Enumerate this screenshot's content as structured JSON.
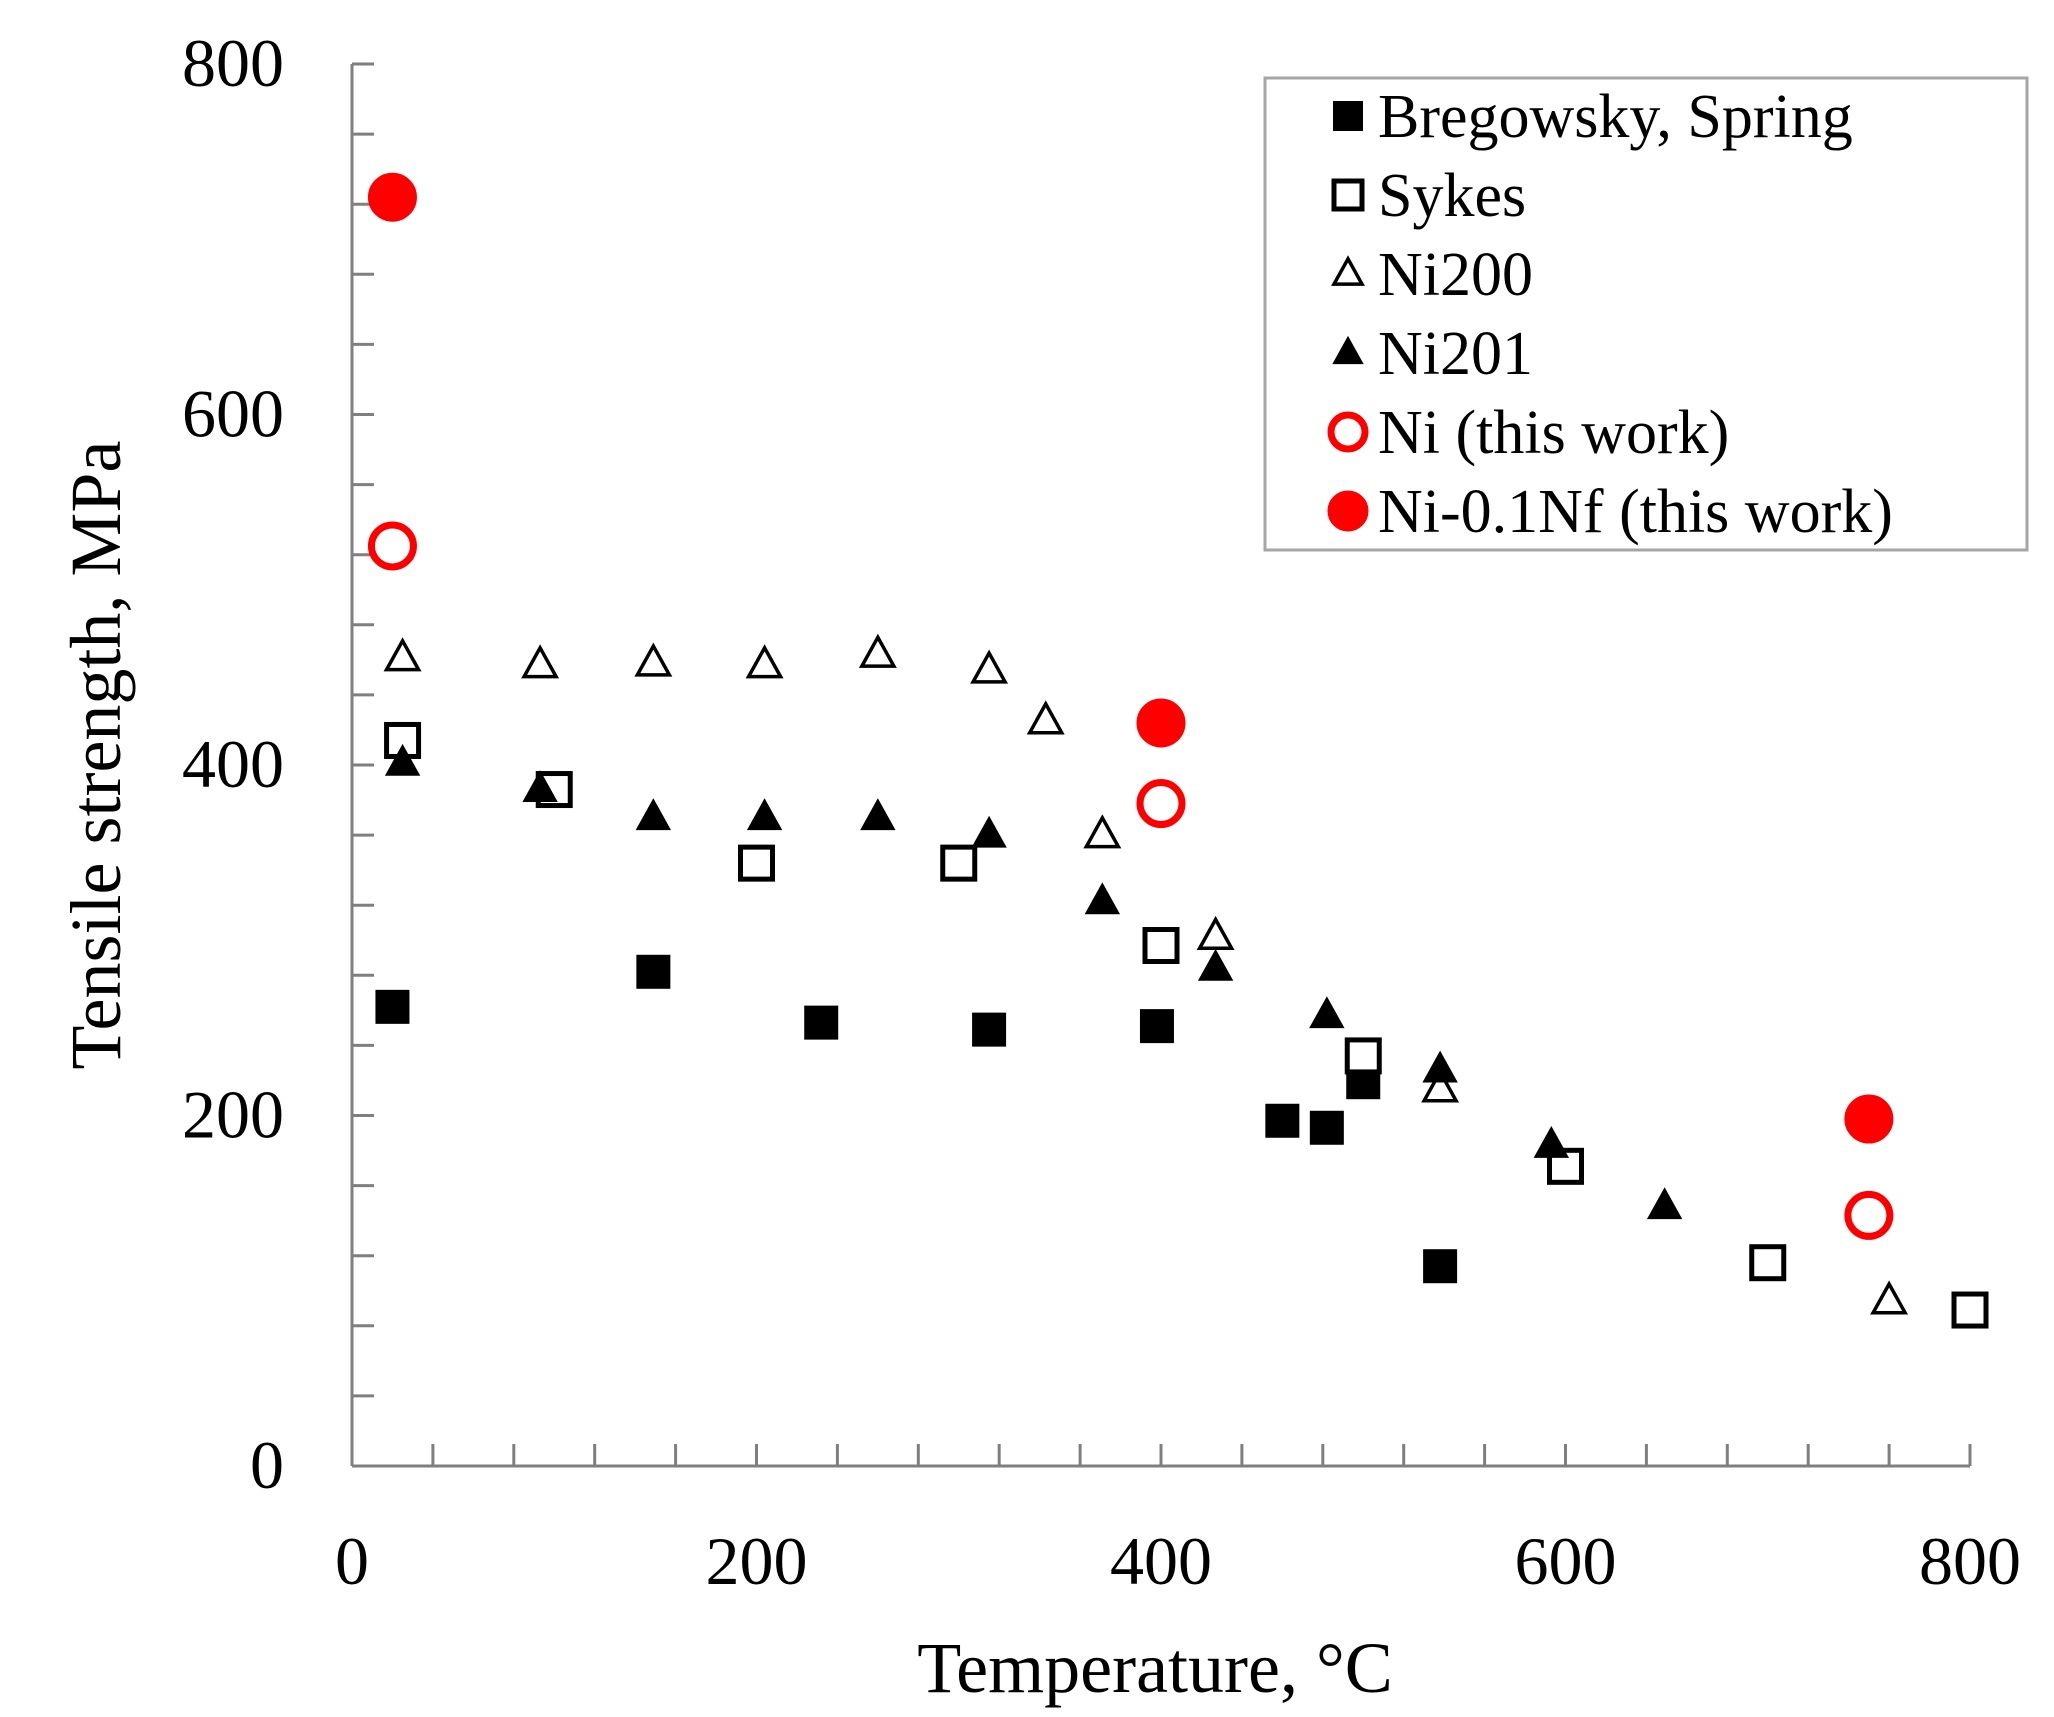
{
  "chart_data": {
    "type": "scatter",
    "title": "",
    "xlabel": "Temperature,  °C",
    "ylabel": "Tensile strength,  MPa",
    "xlim": [
      0,
      800
    ],
    "ylim": [
      0,
      800
    ],
    "x_ticks": [
      "0",
      "200",
      "400",
      "600",
      "800"
    ],
    "y_ticks": [
      "0",
      "200",
      "400",
      "600",
      "800"
    ],
    "grid": false,
    "legend_position": "top-right",
    "series": [
      {
        "name": "Bregowsky, Spring",
        "marker": "square",
        "filled": true,
        "color": "#000000",
        "points": [
          [
            20,
            262
          ],
          [
            149,
            282
          ],
          [
            232,
            253
          ],
          [
            315,
            249
          ],
          [
            398,
            251
          ],
          [
            460,
            197
          ],
          [
            482,
            193
          ],
          [
            500,
            219
          ],
          [
            538,
            114
          ]
        ]
      },
      {
        "name": "Sykes",
        "marker": "square",
        "filled": false,
        "color": "#000000",
        "points": [
          [
            25,
            414
          ],
          [
            100,
            386
          ],
          [
            200,
            344
          ],
          [
            300,
            344
          ],
          [
            400,
            297
          ],
          [
            500,
            234
          ],
          [
            600,
            171
          ],
          [
            700,
            116
          ],
          [
            800,
            89
          ]
        ]
      },
      {
        "name": "Ni200",
        "marker": "triangle",
        "filled": false,
        "color": "#000000",
        "points": [
          [
            25,
            461
          ],
          [
            93,
            457
          ],
          [
            149,
            458
          ],
          [
            204,
            457
          ],
          [
            260,
            463
          ],
          [
            315,
            454
          ],
          [
            343,
            425
          ],
          [
            371,
            360
          ],
          [
            427,
            302
          ],
          [
            538,
            215
          ],
          [
            760,
            94
          ]
        ]
      },
      {
        "name": "Ni201",
        "marker": "triangle",
        "filled": true,
        "color": "#000000",
        "points": [
          [
            25,
            401
          ],
          [
            93,
            386
          ],
          [
            149,
            370
          ],
          [
            204,
            370
          ],
          [
            260,
            370
          ],
          [
            315,
            360
          ],
          [
            371,
            322
          ],
          [
            427,
            284
          ],
          [
            482,
            257
          ],
          [
            538,
            226
          ],
          [
            593,
            183
          ],
          [
            649,
            148
          ]
        ]
      },
      {
        "name": "Ni (this work)",
        "marker": "circle",
        "filled": false,
        "color": "#ff0000",
        "points": [
          [
            20,
            525
          ],
          [
            400,
            378
          ],
          [
            750,
            143
          ]
        ]
      },
      {
        "name": "Ni-0.1Nf (this work)",
        "marker": "circle",
        "filled": true,
        "color": "#ff0000",
        "points": [
          [
            20,
            724
          ],
          [
            400,
            424
          ],
          [
            750,
            198
          ]
        ]
      }
    ]
  }
}
